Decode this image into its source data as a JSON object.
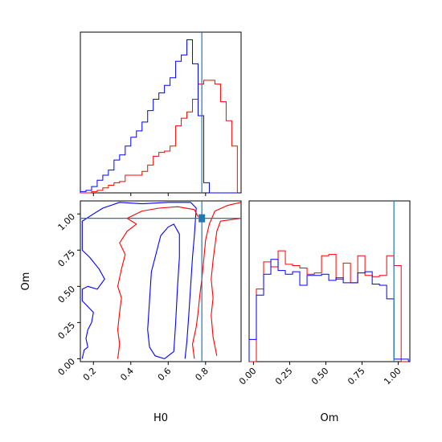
{
  "chart_data": {
    "type": "corner",
    "truth": {
      "H0": 0.78,
      "Om": 0.97,
      "color": "#1f77b4"
    },
    "series_colors": {
      "red": "#ff0000",
      "blue": "#0000ff"
    },
    "panels": {
      "h0_hist": {
        "type": "step-histogram",
        "xlim": [
          0.13,
          0.99
        ],
        "bin_edges": [
          0.13,
          0.16,
          0.19,
          0.22,
          0.25,
          0.28,
          0.31,
          0.34,
          0.37,
          0.4,
          0.43,
          0.46,
          0.49,
          0.52,
          0.55,
          0.58,
          0.61,
          0.64,
          0.67,
          0.7,
          0.73,
          0.76,
          0.79,
          0.82,
          0.85,
          0.88,
          0.91,
          0.94,
          0.97
        ],
        "series": [
          {
            "name": "",
            "color": "red",
            "values": [
              0,
              0,
              1,
              2,
              4,
              6,
              8,
              9,
              14,
              14,
              14,
              17,
              22,
              29,
              32,
              33,
              37,
              53,
              59,
              64,
              74,
              86,
              89,
              89,
              86,
              72,
              57,
              37
            ]
          },
          {
            "name": "",
            "color": "blue",
            "values": [
              1,
              2,
              5,
              10,
              14,
              18,
              26,
              30,
              37,
              44,
              49,
              56,
              65,
              74,
              79,
              85,
              91,
              104,
              109,
              121,
              102,
              61,
              8,
              0,
              0,
              0,
              0,
              0
            ]
          }
        ]
      },
      "om_hist": {
        "type": "step-histogram",
        "xlim": [
          -0.03,
          1.08
        ],
        "xticks": [
          "0.00",
          "0.25",
          "0.50",
          "0.75",
          "1.00"
        ],
        "xlabel": "Om",
        "bin_edges": [
          -0.03,
          0.02,
          0.07,
          0.12,
          0.17,
          0.22,
          0.27,
          0.32,
          0.37,
          0.42,
          0.47,
          0.52,
          0.57,
          0.62,
          0.67,
          0.72,
          0.77,
          0.82,
          0.87,
          0.92,
          0.97,
          1.02,
          1.07
        ],
        "series": [
          {
            "name": "",
            "color": "red",
            "values": [
              0,
              59,
              81,
              77,
              90,
              79,
              78,
              76,
              71,
              72,
              86,
              87,
              67,
              80,
              64,
              86,
              70,
              69,
              70,
              86,
              78,
              0
            ]
          },
          {
            "name": "",
            "color": "blue",
            "values": [
              18,
              54,
              71,
              83,
              74,
              71,
              73,
              62,
              70,
              70,
              71,
              66,
              68,
              64,
              64,
              72,
              73,
              63,
              62,
              51,
              2,
              2
            ]
          }
        ]
      },
      "contour": {
        "type": "contour",
        "xlim": [
          0.13,
          0.99
        ],
        "ylim": [
          -0.02,
          1.09
        ],
        "xticks": [
          "0.2",
          "0.4",
          "0.6",
          "0.8"
        ],
        "yticks": [
          "0.00",
          "0.25",
          "0.50",
          "0.75",
          "1.00"
        ],
        "xlabel": "H0",
        "ylabel": "Om",
        "series": [
          {
            "color": "blue",
            "levels": [
              [
                [
                  0.58,
                  0.0
                ],
                [
                  0.53,
                  0.02
                ],
                [
                  0.5,
                  0.08
                ],
                [
                  0.49,
                  0.2
                ],
                [
                  0.5,
                  0.4
                ],
                [
                  0.51,
                  0.6
                ],
                [
                  0.54,
                  0.75
                ],
                [
                  0.56,
                  0.85
                ],
                [
                  0.6,
                  0.91
                ],
                [
                  0.63,
                  0.93
                ],
                [
                  0.66,
                  0.86
                ],
                [
                  0.66,
                  0.7
                ],
                [
                  0.65,
                  0.5
                ],
                [
                  0.64,
                  0.25
                ],
                [
                  0.63,
                  0.05
                ],
                [
                  0.58,
                  0.0
                ]
              ],
              [
                [
                  0.14,
                  0.0
                ],
                [
                  0.15,
                  0.06
                ],
                [
                  0.17,
                  0.08
                ],
                [
                  0.16,
                  0.14
                ],
                [
                  0.17,
                  0.2
                ],
                [
                  0.19,
                  0.25
                ],
                [
                  0.2,
                  0.32
                ],
                [
                  0.17,
                  0.36
                ],
                [
                  0.14,
                  0.4
                ],
                [
                  0.14,
                  0.48
                ],
                [
                  0.17,
                  0.5
                ],
                [
                  0.22,
                  0.48
                ],
                [
                  0.26,
                  0.55
                ],
                [
                  0.23,
                  0.62
                ],
                [
                  0.18,
                  0.7
                ],
                [
                  0.14,
                  0.75
                ],
                [
                  0.14,
                  0.95
                ],
                [
                  0.2,
                  1.0
                ],
                [
                  0.25,
                  1.04
                ],
                [
                  0.34,
                  1.08
                ],
                [
                  0.46,
                  1.07
                ],
                [
                  0.6,
                  1.08
                ],
                [
                  0.72,
                  1.08
                ],
                [
                  0.75,
                  1.04
                ],
                [
                  0.74,
                  0.85
                ],
                [
                  0.73,
                  0.7
                ],
                [
                  0.72,
                  0.5
                ],
                [
                  0.71,
                  0.3
                ],
                [
                  0.7,
                  0.12
                ],
                [
                  0.69,
                  0.0
                ]
              ]
            ]
          },
          {
            "color": "red",
            "levels": [
              [
                [
                  0.33,
                  0.0
                ],
                [
                  0.34,
                  0.1
                ],
                [
                  0.33,
                  0.2
                ],
                [
                  0.34,
                  0.32
                ],
                [
                  0.35,
                  0.42
                ],
                [
                  0.33,
                  0.5
                ],
                [
                  0.35,
                  0.62
                ],
                [
                  0.37,
                  0.72
                ],
                [
                  0.34,
                  0.8
                ],
                [
                  0.38,
                  0.88
                ],
                [
                  0.43,
                  0.93
                ],
                [
                  0.38,
                  0.97
                ],
                [
                  0.46,
                  1.02
                ],
                [
                  0.55,
                  1.04
                ],
                [
                  0.65,
                  1.05
                ],
                [
                  0.74,
                  1.03
                ],
                [
                  0.76,
                  0.98
                ]
              ],
              [
                [
                  0.86,
                  0.02
                ],
                [
                  0.84,
                  0.15
                ],
                [
                  0.83,
                  0.3
                ],
                [
                  0.84,
                  0.42
                ],
                [
                  0.83,
                  0.55
                ],
                [
                  0.84,
                  0.68
                ],
                [
                  0.85,
                  0.78
                ],
                [
                  0.86,
                  0.88
                ],
                [
                  0.88,
                  0.95
                ],
                [
                  0.99,
                  0.97
                ]
              ],
              [
                [
                  0.74,
                  0.0
                ],
                [
                  0.73,
                  0.1
                ],
                [
                  0.75,
                  0.22
                ],
                [
                  0.76,
                  0.32
                ],
                [
                  0.77,
                  0.45
                ],
                [
                  0.78,
                  0.55
                ],
                [
                  0.79,
                  0.68
                ],
                [
                  0.8,
                  0.82
                ],
                [
                  0.82,
                  0.93
                ],
                [
                  0.85,
                  1.02
                ],
                [
                  0.92,
                  1.06
                ],
                [
                  0.99,
                  1.08
                ]
              ]
            ]
          }
        ]
      }
    }
  }
}
